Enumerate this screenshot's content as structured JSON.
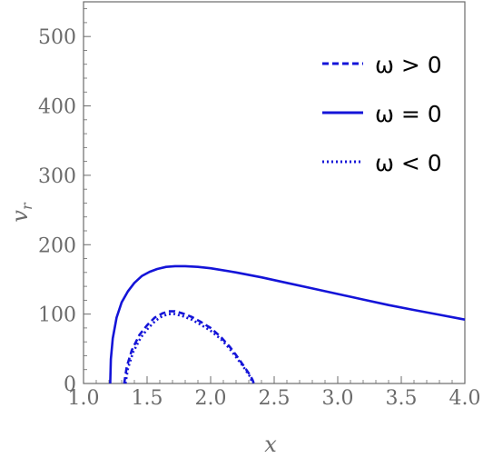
{
  "chart_data": {
    "type": "line",
    "xlabel": "x",
    "ylabel": "v",
    "ylabel_sub": "r",
    "xlim": [
      1.0,
      4.0
    ],
    "ylim": [
      0,
      550
    ],
    "x_ticks": [
      1.0,
      1.5,
      2.0,
      2.5,
      3.0,
      3.5,
      4.0
    ],
    "x_tick_labels": [
      "1.0",
      "1.5",
      "2.0",
      "2.5",
      "3.0",
      "3.5",
      "4.0"
    ],
    "y_ticks": [
      0,
      100,
      200,
      300,
      400,
      500
    ],
    "y_tick_labels": [
      "0",
      "100",
      "200",
      "300",
      "400",
      "500"
    ],
    "grid": false,
    "legend_position": "top-right",
    "colors": {
      "series": "#1414d8",
      "axis": "#6b6b6b"
    },
    "series": [
      {
        "name": "ω > 0",
        "style": "dashed",
        "x": [
          1.32,
          1.34,
          1.38,
          1.44,
          1.5,
          1.56,
          1.62,
          1.67,
          1.72,
          1.78,
          1.85,
          1.92,
          2.0,
          2.08,
          2.15,
          2.2,
          2.25,
          2.28,
          2.31,
          2.33,
          2.34
        ],
        "y": [
          0,
          24,
          48,
          70,
          84,
          95,
          101,
          104,
          104,
          101,
          96,
          89,
          80,
          67,
          53,
          41,
          28,
          20,
          12,
          5,
          0
        ]
      },
      {
        "name": "ω = 0",
        "style": "solid",
        "x": [
          1.21,
          1.215,
          1.23,
          1.26,
          1.3,
          1.35,
          1.4,
          1.46,
          1.52,
          1.58,
          1.65,
          1.72,
          1.8,
          1.9,
          2.0,
          2.2,
          2.4,
          2.6,
          2.8,
          3.0,
          3.2,
          3.4,
          3.6,
          3.8,
          4.0
        ],
        "y": [
          0,
          35,
          65,
          95,
          117,
          133,
          145,
          155,
          161,
          165,
          168,
          169,
          169,
          168,
          166,
          160,
          153,
          145,
          137,
          129,
          121,
          113,
          106,
          99,
          92
        ]
      },
      {
        "name": "ω < 0",
        "style": "dotted",
        "x": [
          1.33,
          1.35,
          1.39,
          1.45,
          1.51,
          1.57,
          1.62,
          1.67,
          1.72,
          1.78,
          1.85,
          1.92,
          2.0,
          2.08,
          2.15,
          2.2,
          2.25,
          2.28,
          2.31,
          2.33
        ],
        "y": [
          0,
          22,
          45,
          66,
          80,
          91,
          97,
          100,
          100,
          97,
          92,
          85,
          76,
          64,
          50,
          38,
          26,
          18,
          10,
          0
        ]
      }
    ]
  }
}
